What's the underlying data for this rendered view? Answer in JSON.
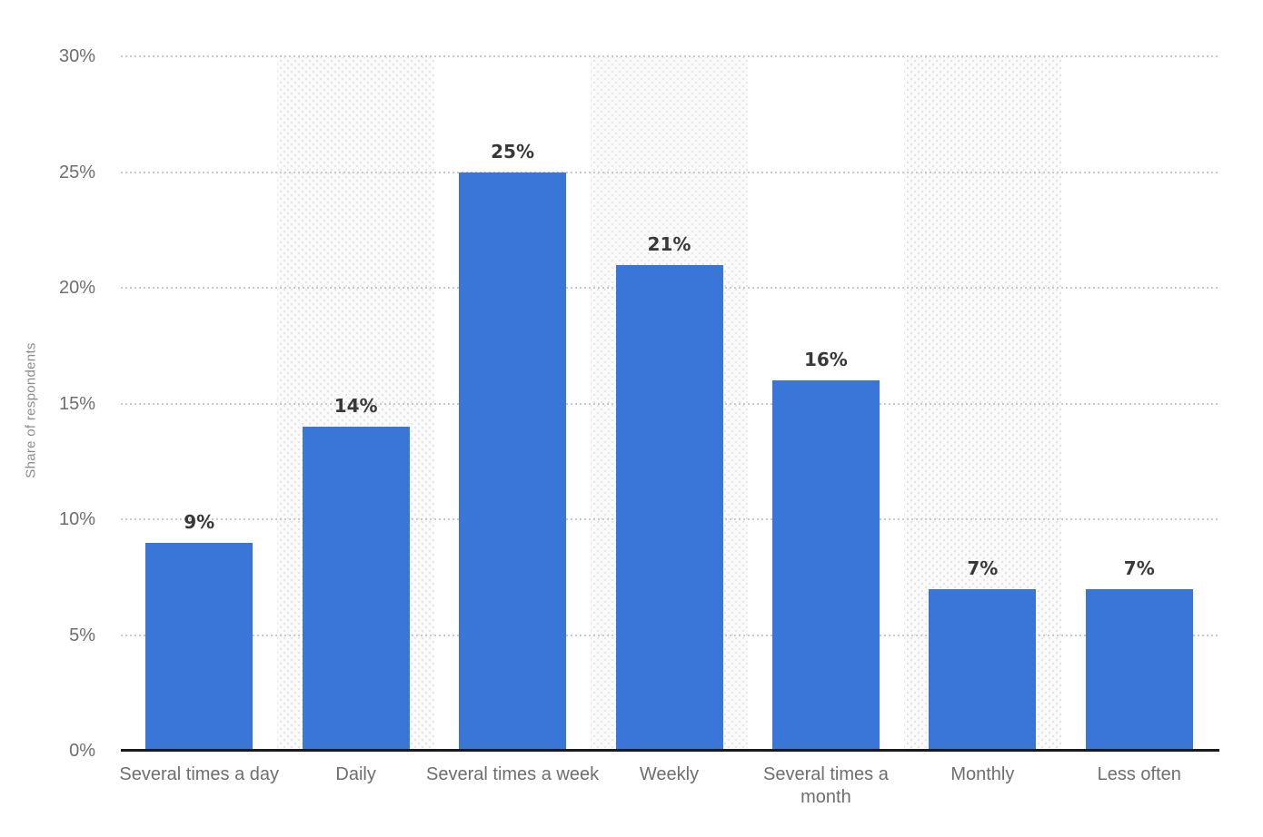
{
  "chart_data": {
    "type": "bar",
    "title": "",
    "xlabel": "",
    "ylabel": "Share of respondents",
    "categories": [
      "Several times a day",
      "Daily",
      "Several times a week",
      "Weekly",
      "Several times a month",
      "Monthly",
      "Less often"
    ],
    "values": [
      9,
      14,
      25,
      21,
      16,
      7,
      7
    ],
    "value_labels": [
      "9%",
      "14%",
      "25%",
      "21%",
      "16%",
      "7%",
      "7%"
    ],
    "ylim": [
      0,
      30
    ],
    "yticks": [
      0,
      5,
      10,
      15,
      20,
      25,
      30
    ],
    "ytick_labels": [
      "0%",
      "5%",
      "10%",
      "15%",
      "20%",
      "25%",
      "30%"
    ],
    "grid": "horizontal-dotted",
    "legend_position": "none",
    "banded_columns": [
      1,
      3,
      5
    ],
    "colors": {
      "bar": "#3A76D8",
      "band_background": "#fafafa",
      "band_dots": "#e4e4e4",
      "gridline": "#c9c9c9",
      "axis_line": "#1a1a1a",
      "value_label": "#383838",
      "tick_label": "#6e6e6e",
      "y_axis_title": "#8c8c8c"
    }
  }
}
